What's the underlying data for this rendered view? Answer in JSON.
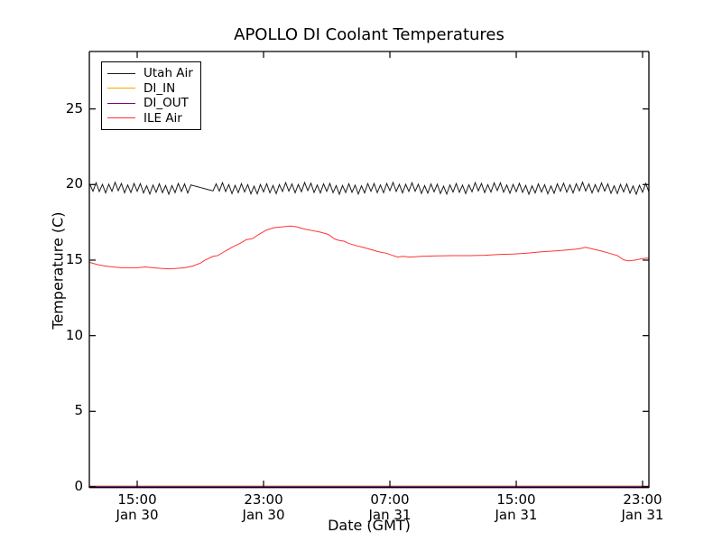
{
  "chart_data": {
    "type": "line",
    "title": "APOLLO DI Coolant Temperatures",
    "xlabel": "Date (GMT)",
    "ylabel": "Temperature (C)",
    "x_unit": "hours since Jan 30 12:00 GMT",
    "xlim": [
      -0.03,
      35.4
    ],
    "ylim": [
      0,
      28.8
    ],
    "grid": false,
    "x_ticks": [
      {
        "t": 3,
        "time": "15:00",
        "date": "Jan 30"
      },
      {
        "t": 11,
        "time": "23:00",
        "date": "Jan 30"
      },
      {
        "t": 19,
        "time": "07:00",
        "date": "Jan 31"
      },
      {
        "t": 27,
        "time": "15:00",
        "date": "Jan 31"
      },
      {
        "t": 35,
        "time": "23:00",
        "date": "Jan 31"
      }
    ],
    "y_ticks": [
      0,
      5,
      10,
      15,
      20,
      25
    ],
    "legend": {
      "position": "upper left",
      "items": [
        {
          "label": "Utah Air",
          "color": "#1a1a1a"
        },
        {
          "label": "DI_IN",
          "color": "#ffa500"
        },
        {
          "label": "DI_OUT",
          "color": "#800080"
        },
        {
          "label": "ILE Air",
          "color": "#ff3333"
        }
      ]
    },
    "series": [
      {
        "name": "Utah Air",
        "color": "#1a1a1a",
        "pattern": "sawtooth-oscillation",
        "osc": {
          "t_start": 0,
          "t_end": 35.4,
          "step_hours": 0.2,
          "high": 20.02,
          "low": 19.48,
          "jitter1": 0.08,
          "jitter2": 0.05
        },
        "smooth_segment": {
          "t0": 6.3,
          "t1": 7.9,
          "v0": 20.0,
          "v1": 19.55
        }
      },
      {
        "name": "DI_IN",
        "color": "#ffa500",
        "note": "constant 0, hidden along bottom axis",
        "points": [
          [
            0,
            0
          ],
          [
            35.4,
            0
          ]
        ]
      },
      {
        "name": "DI_OUT",
        "color": "#800080",
        "note": "constant 0, hidden along bottom axis",
        "points": [
          [
            0,
            0
          ],
          [
            35.4,
            0
          ]
        ]
      },
      {
        "name": "ILE Air",
        "color": "#ff3333",
        "points": [
          [
            0,
            14.85
          ],
          [
            0.5,
            14.7
          ],
          [
            1,
            14.6
          ],
          [
            1.5,
            14.55
          ],
          [
            2,
            14.5
          ],
          [
            2.5,
            14.5
          ],
          [
            3,
            14.5
          ],
          [
            3.5,
            14.55
          ],
          [
            4,
            14.5
          ],
          [
            4.5,
            14.45
          ],
          [
            5,
            14.42
          ],
          [
            5.5,
            14.45
          ],
          [
            6,
            14.5
          ],
          [
            6.5,
            14.6
          ],
          [
            7,
            14.8
          ],
          [
            7.3,
            15.0
          ],
          [
            7.8,
            15.25
          ],
          [
            8.1,
            15.3
          ],
          [
            8.5,
            15.55
          ],
          [
            9,
            15.85
          ],
          [
            9.5,
            16.1
          ],
          [
            9.9,
            16.35
          ],
          [
            10.3,
            16.42
          ],
          [
            10.7,
            16.7
          ],
          [
            11.2,
            17.0
          ],
          [
            11.7,
            17.15
          ],
          [
            12.2,
            17.2
          ],
          [
            12.7,
            17.25
          ],
          [
            13.1,
            17.2
          ],
          [
            13.6,
            17.05
          ],
          [
            14.1,
            16.95
          ],
          [
            14.6,
            16.85
          ],
          [
            15.1,
            16.7
          ],
          [
            15.5,
            16.4
          ],
          [
            15.8,
            16.3
          ],
          [
            16.1,
            16.25
          ],
          [
            16.4,
            16.1
          ],
          [
            16.9,
            15.95
          ],
          [
            17.3,
            15.85
          ],
          [
            17.8,
            15.7
          ],
          [
            18.3,
            15.55
          ],
          [
            18.8,
            15.45
          ],
          [
            19.2,
            15.3
          ],
          [
            19.5,
            15.2
          ],
          [
            19.8,
            15.25
          ],
          [
            20.3,
            15.2
          ],
          [
            21,
            15.25
          ],
          [
            22,
            15.28
          ],
          [
            23,
            15.3
          ],
          [
            24,
            15.3
          ],
          [
            25,
            15.32
          ],
          [
            26,
            15.38
          ],
          [
            26.8,
            15.4
          ],
          [
            27.6,
            15.45
          ],
          [
            28.6,
            15.55
          ],
          [
            29.6,
            15.62
          ],
          [
            30.5,
            15.7
          ],
          [
            31,
            15.75
          ],
          [
            31.4,
            15.85
          ],
          [
            31.9,
            15.72
          ],
          [
            32.4,
            15.6
          ],
          [
            33,
            15.42
          ],
          [
            33.4,
            15.3
          ],
          [
            33.8,
            15.02
          ],
          [
            34.1,
            14.95
          ],
          [
            34.5,
            15.0
          ],
          [
            35,
            15.1
          ],
          [
            35.4,
            15.15
          ]
        ]
      }
    ]
  }
}
